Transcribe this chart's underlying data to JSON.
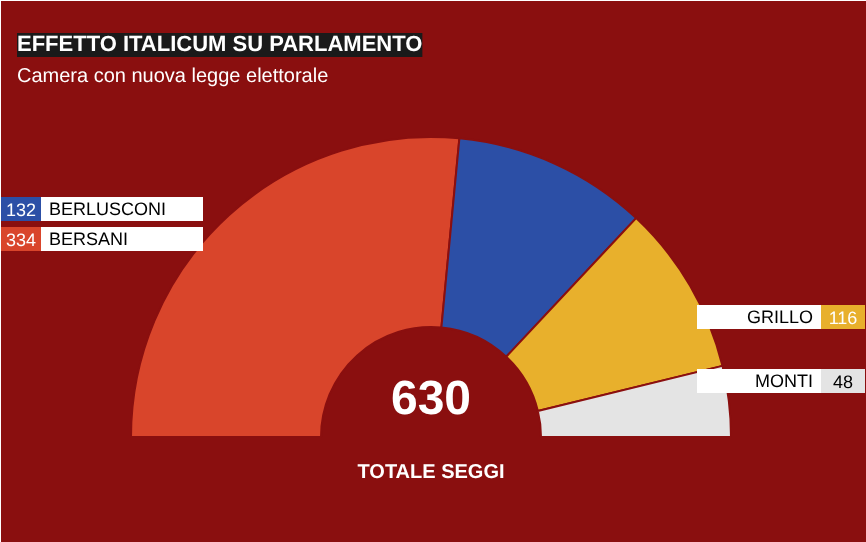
{
  "chart_data": {
    "type": "donut",
    "title": "EFFETTO ITALICUM SU PARLAMENTO",
    "subtitle": "Camera con nuova legge elettorale",
    "categories": [
      "BERSANI",
      "BERLUSCONI",
      "GRILLO",
      "MONTI"
    ],
    "values": [
      334,
      132,
      116,
      48
    ],
    "colors": [
      "#d9452b",
      "#2c4fa6",
      "#e8b02c",
      "#e4e4e4"
    ],
    "data_labels": true,
    "legend": "left",
    "annotations": [
      "630",
      "TOTALE SEGGI"
    ]
  }
}
